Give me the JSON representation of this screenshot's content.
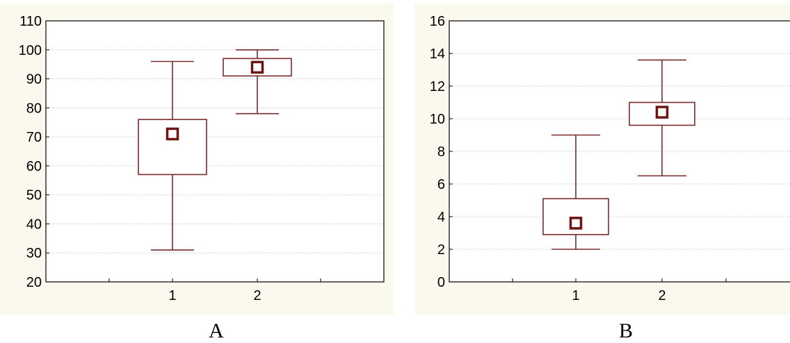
{
  "colors": {
    "panel_background": "#fbf8ee",
    "plot_background": "#ffffff",
    "box_stroke": "#7a2a2a",
    "mean_marker": "#6e1414",
    "grid": "#b8b8b8",
    "axis": "#000000"
  },
  "chart_data": [
    {
      "type": "box",
      "panel_label": "A",
      "title": "",
      "xlabel": "",
      "ylabel": "",
      "categories": [
        "1",
        "2"
      ],
      "ylim": [
        20,
        110
      ],
      "yticks": [
        "20",
        "30",
        "40",
        "50",
        "60",
        "70",
        "80",
        "90",
        "100",
        "110"
      ],
      "grid": true,
      "boxes": [
        {
          "category": "1",
          "whisker_low": 31,
          "box_low": 57,
          "mean": 71,
          "box_high": 76,
          "whisker_high": 96
        },
        {
          "category": "2",
          "whisker_low": 78,
          "box_low": 91,
          "mean": 94,
          "box_high": 97,
          "whisker_high": 100
        }
      ]
    },
    {
      "type": "box",
      "panel_label": "B",
      "title": "",
      "xlabel": "",
      "ylabel": "",
      "categories": [
        "1",
        "2"
      ],
      "ylim": [
        0,
        16
      ],
      "yticks": [
        "0",
        "2",
        "4",
        "6",
        "8",
        "10",
        "12",
        "14",
        "16"
      ],
      "grid": true,
      "boxes": [
        {
          "category": "1",
          "whisker_low": 2,
          "box_low": 2.9,
          "mean": 3.6,
          "box_high": 5.1,
          "whisker_high": 9
        },
        {
          "category": "2",
          "whisker_low": 6.5,
          "box_low": 9.6,
          "mean": 10.4,
          "box_high": 11,
          "whisker_high": 13.6
        }
      ]
    }
  ]
}
